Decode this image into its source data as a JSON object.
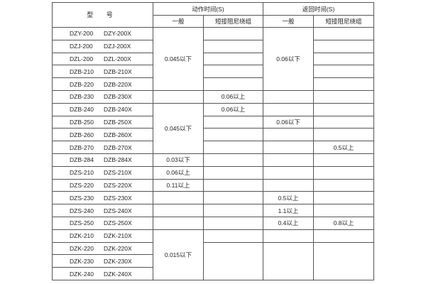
{
  "header": {
    "type": "型 号",
    "action_time": "动作时间(S)",
    "return_time": "返回时间(S)",
    "general": "一般",
    "short_damping": "短接阻尼绕组"
  },
  "rows": [
    {
      "model": [
        "DZY-200",
        "DZY-200X"
      ],
      "cells": [
        {
          "col": 2,
          "text": "0.045以下",
          "span": 5
        },
        {
          "col": 3,
          "text": ""
        },
        {
          "col": 4,
          "text": "0.06以下",
          "span": 5
        },
        {
          "col": 5,
          "text": ""
        }
      ]
    },
    {
      "model": [
        "DZJ-200",
        "DZJ-200X"
      ],
      "cells": [
        {
          "col": 3,
          "text": ""
        },
        {
          "col": 5,
          "text": ""
        }
      ]
    },
    {
      "model": [
        "DZL-200",
        "DZL-200X"
      ],
      "cells": [
        {
          "col": 3,
          "text": ""
        },
        {
          "col": 5,
          "text": ""
        }
      ]
    },
    {
      "model": [
        "DZB-210",
        "DZB-210X"
      ],
      "cells": [
        {
          "col": 3,
          "text": ""
        },
        {
          "col": 5,
          "text": ""
        }
      ]
    },
    {
      "model": [
        "DZB-220",
        "DZB-220X"
      ],
      "cells": [
        {
          "col": 3,
          "text": ""
        },
        {
          "col": 5,
          "text": ""
        }
      ]
    },
    {
      "model": [
        "DZB-230",
        "DZB-230X"
      ],
      "cells": [
        {
          "col": 2,
          "text": ""
        },
        {
          "col": 3,
          "text": "0.06以上"
        },
        {
          "col": 4,
          "text": ""
        },
        {
          "col": 5,
          "text": ""
        }
      ]
    },
    {
      "model": [
        "DZB-240",
        "DZB-240X"
      ],
      "cells": [
        {
          "col": 2,
          "text": "0.045以下",
          "span": 4
        },
        {
          "col": 3,
          "text": "0.06以上"
        },
        {
          "col": 4,
          "text": ""
        },
        {
          "col": 5,
          "text": ""
        }
      ]
    },
    {
      "model": [
        "DZB-250",
        "DZB-250X"
      ],
      "cells": [
        {
          "col": 3,
          "text": ""
        },
        {
          "col": 4,
          "text": "0.06以下"
        },
        {
          "col": 5,
          "text": ""
        }
      ]
    },
    {
      "model": [
        "DZB-260",
        "DZB-260X"
      ],
      "cells": [
        {
          "col": 3,
          "text": ""
        },
        {
          "col": 4,
          "text": ""
        },
        {
          "col": 5,
          "text": ""
        }
      ]
    },
    {
      "model": [
        "DZB-270",
        "DZB-270X"
      ],
      "cells": [
        {
          "col": 3,
          "text": ""
        },
        {
          "col": 4,
          "text": ""
        },
        {
          "col": 5,
          "text": "0.5以上"
        }
      ]
    },
    {
      "model": [
        "DZB-284",
        "DZB-284X"
      ],
      "cells": [
        {
          "col": 2,
          "text": "0.03以下"
        },
        {
          "col": 3,
          "text": ""
        },
        {
          "col": 4,
          "text": ""
        },
        {
          "col": 5,
          "text": ""
        }
      ]
    },
    {
      "model": [
        "DZS-210",
        "DZS-210X"
      ],
      "cells": [
        {
          "col": 2,
          "text": "0.06以上"
        },
        {
          "col": 3,
          "text": ""
        },
        {
          "col": 4,
          "text": ""
        },
        {
          "col": 5,
          "text": ""
        }
      ]
    },
    {
      "model": [
        "DZS-220",
        "DZS-220X"
      ],
      "cells": [
        {
          "col": 2,
          "text": "0.11以上"
        },
        {
          "col": 3,
          "text": ""
        },
        {
          "col": 4,
          "text": ""
        },
        {
          "col": 5,
          "text": ""
        }
      ]
    },
    {
      "model": [
        "DZS-230",
        "DZS-230X"
      ],
      "cells": [
        {
          "col": 2,
          "text": ""
        },
        {
          "col": 3,
          "text": ""
        },
        {
          "col": 4,
          "text": "0.5以上"
        },
        {
          "col": 5,
          "text": ""
        }
      ]
    },
    {
      "model": [
        "DZS-240",
        "DZS-240X"
      ],
      "cells": [
        {
          "col": 2,
          "text": ""
        },
        {
          "col": 3,
          "text": ""
        },
        {
          "col": 4,
          "text": "1.1以上"
        },
        {
          "col": 5,
          "text": ""
        }
      ]
    },
    {
      "model": [
        "DZS-250",
        "DZS-250X"
      ],
      "cells": [
        {
          "col": 2,
          "text": ""
        },
        {
          "col": 3,
          "text": ""
        },
        {
          "col": 4,
          "text": "0.4以上"
        },
        {
          "col": 5,
          "text": "0.8以上"
        }
      ]
    },
    {
      "model": [
        "DZK-210",
        "DZK-210X"
      ],
      "cells": [
        {
          "col": 2,
          "text": "0.015以下",
          "span": 4
        },
        {
          "col": 3,
          "text": ""
        },
        {
          "col": 4,
          "text": ""
        },
        {
          "col": 5,
          "text": ""
        }
      ]
    },
    {
      "model": [
        "DZK-220",
        "DZK-220X"
      ],
      "cells": [
        {
          "col": 3,
          "text": "",
          "span": 3
        },
        {
          "col": 4,
          "text": "",
          "span": 3
        },
        {
          "col": 5,
          "text": "",
          "span": 3
        }
      ]
    },
    {
      "model": [
        "DZK-230",
        "DZK-230X"
      ],
      "cells": []
    },
    {
      "model": [
        "DZK-240",
        "DZK-240X"
      ],
      "cells": []
    }
  ]
}
